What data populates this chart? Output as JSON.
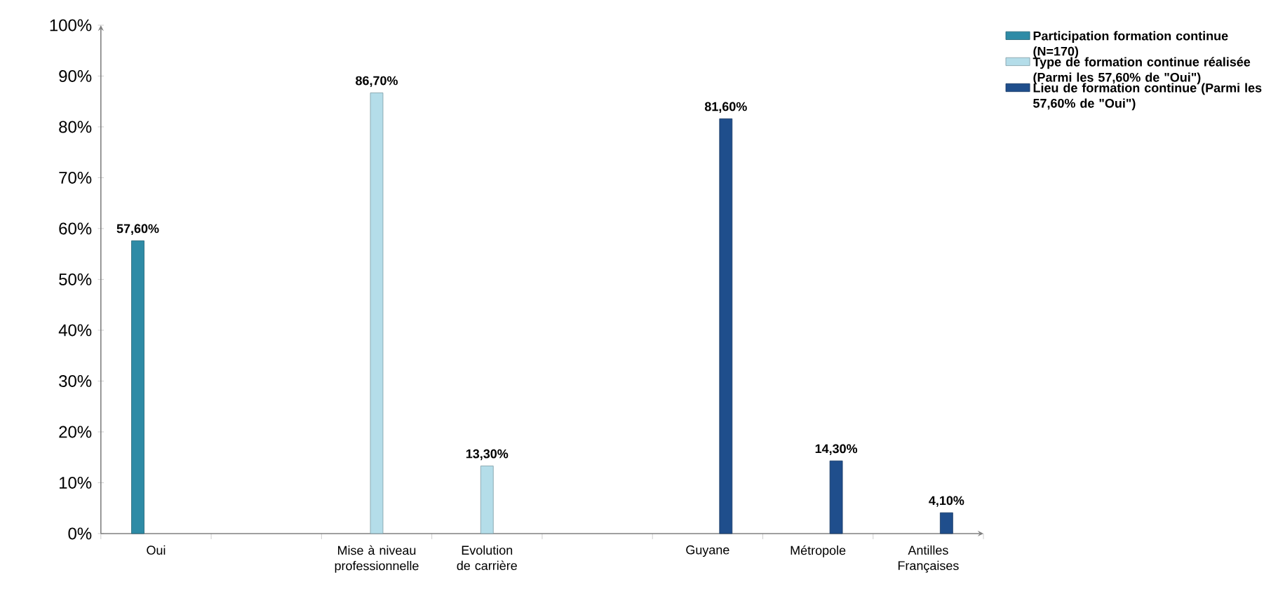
{
  "chart_data": {
    "type": "bar",
    "categories": [
      "Oui",
      null,
      "Mise à niveau professionnelle",
      "Evolution de carrière",
      null,
      "Guyane",
      "Métropole",
      "Antilles Françaises"
    ],
    "series": [
      {
        "name": "Participation formation continue (N=170)",
        "color": "#2e8ba6",
        "values": [
          57.6,
          null,
          null,
          null,
          null,
          null,
          null,
          null
        ],
        "value_labels": [
          "57,60%",
          null,
          null,
          null,
          null,
          null,
          null,
          null
        ]
      },
      {
        "name": "Type de formation continue réalisée (Parmi les 57,60% de \"Oui\")",
        "color": "#b4dde9",
        "values": [
          null,
          null,
          86.7,
          13.3,
          null,
          null,
          null,
          null
        ],
        "value_labels": [
          null,
          null,
          "86,70%",
          "13,30%",
          null,
          null,
          null,
          null
        ]
      },
      {
        "name": "Lieu de formation continue (Parmi les 57,60% de \"Oui\")",
        "color": "#1f4e8c",
        "values": [
          null,
          null,
          null,
          null,
          null,
          81.6,
          14.3,
          4.1
        ],
        "value_labels": [
          null,
          null,
          null,
          null,
          null,
          "81,60%",
          "14,30%",
          "4,10%"
        ]
      }
    ],
    "ylim": [
      0,
      100
    ],
    "yticks": [
      {
        "value": 0,
        "label": "0%"
      },
      {
        "value": 10,
        "label": "10%"
      },
      {
        "value": 20,
        "label": "20%"
      },
      {
        "value": 30,
        "label": "30%"
      },
      {
        "value": 40,
        "label": "40%"
      },
      {
        "value": 50,
        "label": "50%"
      },
      {
        "value": 60,
        "label": "60%"
      },
      {
        "value": 70,
        "label": "70%"
      },
      {
        "value": 80,
        "label": "80%"
      },
      {
        "value": 90,
        "label": "90%"
      },
      {
        "value": 100,
        "label": "100%"
      }
    ],
    "grid": false,
    "legend": "right"
  }
}
